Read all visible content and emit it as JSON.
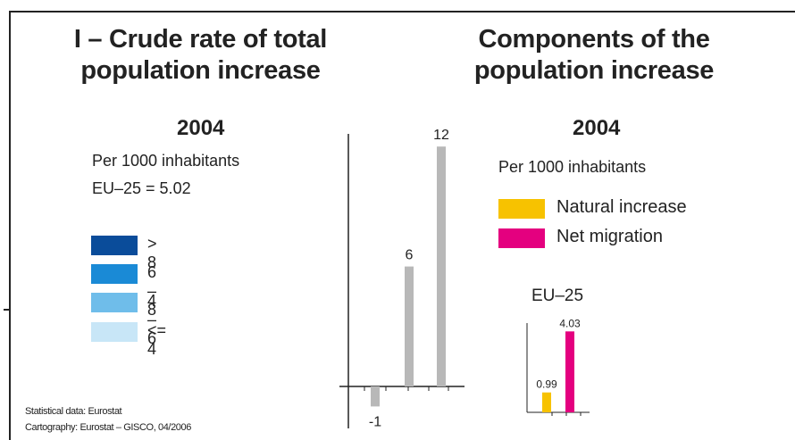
{
  "left_panel": {
    "title_line1": "I – Crude rate of total",
    "title_line2": "population increase",
    "year": "2004",
    "unit": "Per 1000 inhabitants",
    "eu_value": "EU–25 = 5.02",
    "legend": [
      {
        "label": "> 8",
        "color": "#0a4c9a"
      },
      {
        "label": "6 – 8",
        "color": "#1a8ad6"
      },
      {
        "label": "4 – 6",
        "color": "#6fbdea"
      },
      {
        "label": "<= 4",
        "color": "#c8e6f7"
      }
    ],
    "source_line1": "Statistical data: Eurostat",
    "source_line2": "Cartography: Eurostat – GISCO, 04/2006"
  },
  "right_panel": {
    "title_line1": "Components of the",
    "title_line2": "population increase",
    "year": "2004",
    "unit": "Per 1000 inhabitants",
    "legend": [
      {
        "label": "Natural increase",
        "color": "#f7c200"
      },
      {
        "label": "Net migration",
        "color": "#e4007f"
      }
    ]
  },
  "colors": {
    "grey_bar": "#b8b8b8",
    "natural_increase": "#f7c200",
    "net_migration": "#e4007f"
  },
  "chart_data": [
    {
      "type": "bar",
      "categories": [
        "",
        "",
        ""
      ],
      "values": [
        -1,
        6,
        12
      ],
      "data_labels": [
        "-1",
        "6",
        "12"
      ],
      "title": "",
      "xlabel": "",
      "ylabel": "",
      "ylim": [
        -2,
        13
      ],
      "grid": false
    },
    {
      "type": "bar",
      "title": "EU–25",
      "categories": [
        "Natural increase",
        "Net migration"
      ],
      "values": [
        0.99,
        4.03
      ],
      "data_labels": [
        "0.99",
        "4.03"
      ],
      "colors": [
        "#f7c200",
        "#e4007f"
      ],
      "ylim": [
        0,
        5
      ],
      "grid": false
    }
  ]
}
